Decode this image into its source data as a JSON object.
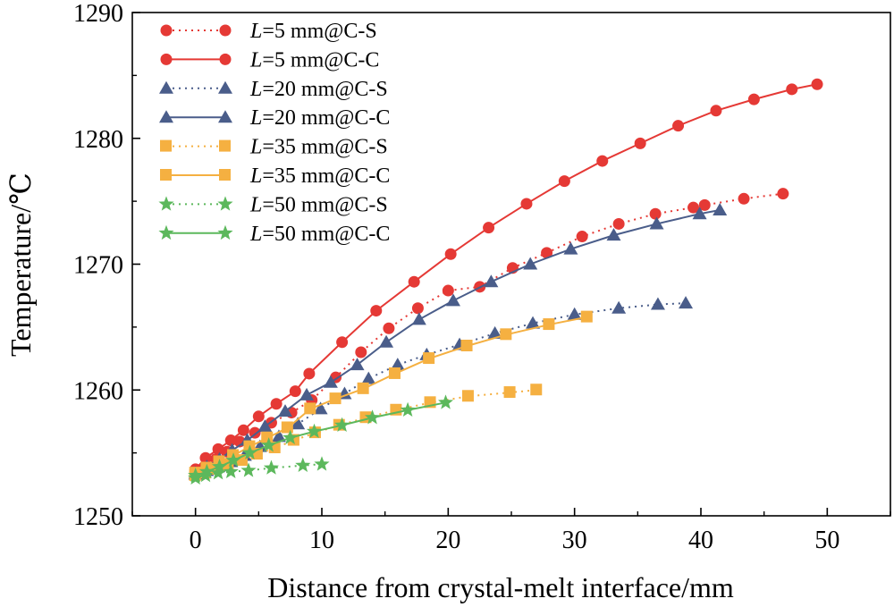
{
  "chart_data": {
    "type": "line",
    "title": "",
    "xlabel": "Distance from crystal-melt interface/mm",
    "ylabel": "Temperature/℃",
    "xlim": [
      -5,
      55
    ],
    "ylim": [
      1250,
      1290
    ],
    "xticks": [
      "0",
      "10",
      "20",
      "30",
      "40",
      "50"
    ],
    "yticks": [
      "1250",
      "1260",
      "1270",
      "1280",
      "1290"
    ],
    "legend_position": "top-left",
    "grid": false,
    "series": [
      {
        "name": "L=5 mm@C-S",
        "legend_italic": "L",
        "legend_rest": "=5 mm@C-S",
        "color": "#e53935",
        "marker": "circle",
        "linestyle": "dotted",
        "x": [
          0,
          0.8,
          1.6,
          2.5,
          3.5,
          4.7,
          6.0,
          7.6,
          9.2,
          11.1,
          13.1,
          15.3,
          17.6,
          20.0,
          22.5,
          25.1,
          27.8,
          30.6,
          33.5,
          36.4,
          39.4,
          40.3,
          43.4,
          46.5
        ],
        "y": [
          1253.5,
          1253.9,
          1254.5,
          1255.1,
          1255.9,
          1256.6,
          1257.4,
          1258.2,
          1259.2,
          1261.0,
          1263.0,
          1264.9,
          1266.5,
          1267.9,
          1268.2,
          1269.7,
          1270.9,
          1272.2,
          1273.2,
          1274.0,
          1274.5,
          1274.7,
          1275.2,
          1275.6
        ]
      },
      {
        "name": "L=5 mm@C-C",
        "legend_italic": "L",
        "legend_rest": "=5 mm@C-C",
        "color": "#e53935",
        "marker": "circle",
        "linestyle": "solid",
        "x": [
          0,
          0.8,
          1.8,
          2.8,
          3.8,
          5.0,
          6.4,
          7.9,
          9.0,
          11.6,
          14.3,
          17.3,
          20.2,
          23.2,
          26.2,
          29.2,
          32.2,
          35.2,
          38.2,
          41.2,
          44.2,
          47.2,
          49.2
        ],
        "y": [
          1253.7,
          1254.6,
          1255.3,
          1256.0,
          1256.8,
          1257.9,
          1258.9,
          1259.9,
          1261.3,
          1263.8,
          1266.3,
          1268.6,
          1270.8,
          1272.9,
          1274.8,
          1276.6,
          1278.2,
          1279.6,
          1281.0,
          1282.2,
          1283.1,
          1283.9,
          1284.3
        ]
      },
      {
        "name": "L=20 mm@C-S",
        "legend_italic": "L",
        "legend_rest": "=20 mm@C-S",
        "color": "#4a5d8a",
        "marker": "triangle",
        "linestyle": "dotted",
        "x": [
          0,
          0.9,
          1.8,
          2.8,
          3.9,
          5.1,
          6.6,
          8.1,
          9.9,
          11.8,
          13.7,
          16.0,
          18.3,
          20.9,
          23.7,
          26.7,
          30.0,
          33.5,
          36.6,
          38.8
        ],
        "y": [
          1253.3,
          1253.6,
          1253.9,
          1254.3,
          1254.8,
          1255.5,
          1256.3,
          1257.3,
          1258.5,
          1259.7,
          1260.9,
          1262.0,
          1262.8,
          1263.6,
          1264.5,
          1265.3,
          1266.0,
          1266.5,
          1266.8,
          1266.9
        ]
      },
      {
        "name": "L=20 mm@C-C",
        "legend_italic": "L",
        "legend_rest": "=20 mm@C-C",
        "color": "#4a5d8a",
        "marker": "triangle",
        "linestyle": "solid",
        "x": [
          0,
          0.9,
          1.9,
          2.9,
          4.1,
          5.5,
          7.1,
          8.8,
          10.7,
          12.8,
          15.1,
          17.7,
          20.4,
          23.4,
          26.5,
          29.7,
          33.1,
          36.5,
          39.9,
          41.5
        ],
        "y": [
          1253.4,
          1253.9,
          1254.5,
          1255.2,
          1256.0,
          1257.1,
          1258.3,
          1259.6,
          1260.6,
          1262.0,
          1263.8,
          1265.6,
          1267.1,
          1268.6,
          1270.0,
          1271.2,
          1272.3,
          1273.2,
          1274.0,
          1274.3
        ]
      },
      {
        "name": "L=35 mm@C-S",
        "legend_italic": "L",
        "legend_rest": "=35 mm@C-S",
        "color": "#f5b041",
        "marker": "square",
        "linestyle": "dotted",
        "x": [
          0,
          0.8,
          1.6,
          2.6,
          3.7,
          4.9,
          6.3,
          7.8,
          9.5,
          11.4,
          13.5,
          15.9,
          18.6,
          21.6,
          24.9,
          27.0
        ],
        "y": [
          1253.2,
          1253.4,
          1253.7,
          1254.0,
          1254.4,
          1254.9,
          1255.4,
          1256.0,
          1256.6,
          1257.2,
          1257.8,
          1258.4,
          1259.0,
          1259.5,
          1259.8,
          1260.0
        ]
      },
      {
        "name": "L=35 mm@C-C",
        "legend_italic": "L",
        "legend_rest": "=35 mm@C-C",
        "color": "#f5b041",
        "marker": "square",
        "linestyle": "solid",
        "x": [
          0,
          0.9,
          1.9,
          3.0,
          4.3,
          5.7,
          7.3,
          9.1,
          11.1,
          13.3,
          15.8,
          18.5,
          21.5,
          24.6,
          28.0,
          31.0
        ],
        "y": [
          1253.4,
          1253.8,
          1254.3,
          1254.8,
          1255.5,
          1256.2,
          1257.0,
          1258.5,
          1259.3,
          1260.1,
          1261.3,
          1262.5,
          1263.5,
          1264.4,
          1265.2,
          1265.8
        ]
      },
      {
        "name": "L=50 mm@C-S",
        "legend_italic": "L",
        "legend_rest": "=50 mm@C-S",
        "color": "#5cb85c",
        "marker": "star",
        "linestyle": "dotted",
        "x": [
          0,
          0.8,
          1.8,
          2.8,
          4.2,
          6.0,
          8.5,
          10.0
        ],
        "y": [
          1253.0,
          1253.2,
          1253.4,
          1253.5,
          1253.6,
          1253.8,
          1254.0,
          1254.1
        ]
      },
      {
        "name": "L=50 mm@C-C",
        "legend_italic": "L",
        "legend_rest": "=50 mm@C-C",
        "color": "#5cb85c",
        "marker": "star",
        "linestyle": "solid",
        "x": [
          0,
          0.9,
          1.9,
          3.0,
          4.3,
          5.8,
          7.5,
          9.4,
          11.6,
          14.0,
          16.8,
          19.8
        ],
        "y": [
          1253.2,
          1253.5,
          1253.9,
          1254.4,
          1255.0,
          1255.6,
          1256.2,
          1256.7,
          1257.2,
          1257.8,
          1258.4,
          1259.0
        ]
      }
    ]
  }
}
